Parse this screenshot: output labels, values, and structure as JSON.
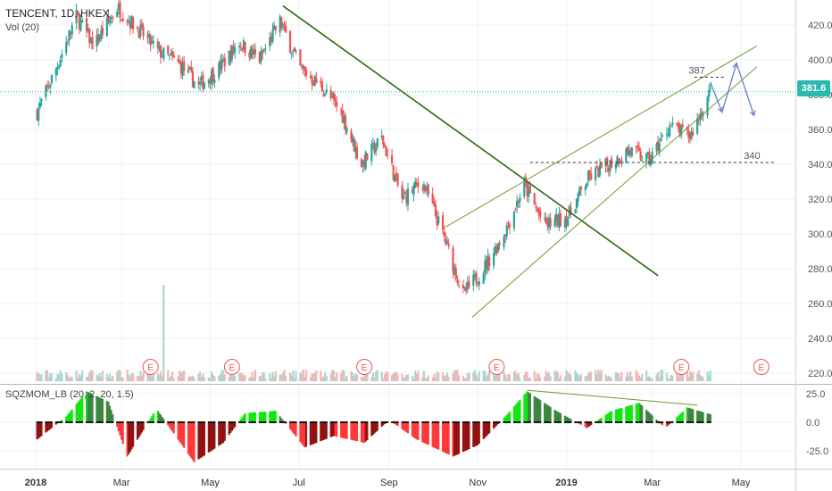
{
  "header": {
    "symbol_line": "TENCENT, 1D, HKEX",
    "volume_label": "Vol (20)",
    "indicator_label": "SQZMOM_LB (20, 2, 20, 1.5)"
  },
  "last_price_label": "381.6",
  "colors": {
    "up": "#26a69a",
    "down": "#ef5350",
    "mom_up_strong": "#00e600",
    "mom_up_weak": "#2e7d32",
    "mom_down_strong": "#ff2a2a",
    "mom_down_weak": "#8b0000",
    "downtrend_line": "#2e6b12",
    "channel_lines": "#6b9c2e",
    "projection": "#6b7fd0",
    "last_price_line": "#2bb8b0"
  },
  "annotations": {
    "resistance_label": "387",
    "support_label": "340",
    "earnings_marker": "E"
  },
  "chart_data": [
    {
      "type": "candlestick",
      "title": "TENCENT, 1D, HKEX",
      "y_axis_ticks": [
        "420.0",
        "400.0",
        "380.0",
        "360.0",
        "340.0",
        "320.0",
        "300.0",
        "280.0",
        "260.0",
        "240.0",
        "220.0"
      ],
      "x_axis_ticks": [
        "2018",
        "Mar",
        "May",
        "Jul",
        "Sep",
        "Nov",
        "2019",
        "Mar",
        "May"
      ],
      "ylim": [
        215,
        430
      ],
      "last_price": 381.6,
      "levels": [
        387,
        340
      ],
      "price_path": [
        {
          "date": "2018-01-02",
          "price": 370
        },
        {
          "date": "2018-01-15",
          "price": 395
        },
        {
          "date": "2018-01-29",
          "price": 425
        },
        {
          "date": "2018-02-10",
          "price": 408
        },
        {
          "date": "2018-02-26",
          "price": 430
        },
        {
          "date": "2018-03-12",
          "price": 418
        },
        {
          "date": "2018-03-26",
          "price": 405
        },
        {
          "date": "2018-04-09",
          "price": 398
        },
        {
          "date": "2018-04-23",
          "price": 385
        },
        {
          "date": "2018-05-07",
          "price": 395
        },
        {
          "date": "2018-05-21",
          "price": 410
        },
        {
          "date": "2018-06-04",
          "price": 400
        },
        {
          "date": "2018-06-18",
          "price": 422
        },
        {
          "date": "2018-07-02",
          "price": 395
        },
        {
          "date": "2018-07-16",
          "price": 385
        },
        {
          "date": "2018-07-30",
          "price": 370
        },
        {
          "date": "2018-08-13",
          "price": 340
        },
        {
          "date": "2018-08-27",
          "price": 355
        },
        {
          "date": "2018-09-10",
          "price": 320
        },
        {
          "date": "2018-09-24",
          "price": 330
        },
        {
          "date": "2018-10-08",
          "price": 300
        },
        {
          "date": "2018-10-22",
          "price": 265
        },
        {
          "date": "2018-11-05",
          "price": 280
        },
        {
          "date": "2018-11-19",
          "price": 300
        },
        {
          "date": "2018-12-03",
          "price": 328
        },
        {
          "date": "2018-12-17",
          "price": 305
        },
        {
          "date": "2019-01-02",
          "price": 310
        },
        {
          "date": "2019-01-16",
          "price": 332
        },
        {
          "date": "2019-01-30",
          "price": 340
        },
        {
          "date": "2019-02-13",
          "price": 348
        },
        {
          "date": "2019-02-27",
          "price": 342
        },
        {
          "date": "2019-03-13",
          "price": 362
        },
        {
          "date": "2019-03-27",
          "price": 356
        },
        {
          "date": "2019-04-10",
          "price": 381.6
        }
      ],
      "volume_spike": {
        "date": "2018-03-30",
        "relative": 1.0
      }
    },
    {
      "type": "bar",
      "title": "SQZMOM_LB (20, 2, 20, 1.5)",
      "y_axis_ticks": [
        "25.0",
        "0.0",
        "-25.0"
      ],
      "ylim": [
        -35,
        32
      ],
      "momentum_path": [
        {
          "date": "2018-01-02",
          "value": -15
        },
        {
          "date": "2018-01-22",
          "value": 5
        },
        {
          "date": "2018-02-05",
          "value": 27
        },
        {
          "date": "2018-02-20",
          "value": 18
        },
        {
          "date": "2018-03-05",
          "value": -30
        },
        {
          "date": "2018-03-25",
          "value": 12
        },
        {
          "date": "2018-04-05",
          "value": -8
        },
        {
          "date": "2018-04-20",
          "value": -35
        },
        {
          "date": "2018-05-10",
          "value": -18
        },
        {
          "date": "2018-05-25",
          "value": 8
        },
        {
          "date": "2018-06-15",
          "value": 10
        },
        {
          "date": "2018-07-05",
          "value": -22
        },
        {
          "date": "2018-07-25",
          "value": -12
        },
        {
          "date": "2018-08-15",
          "value": -18
        },
        {
          "date": "2018-09-01",
          "value": 2
        },
        {
          "date": "2018-09-20",
          "value": -15
        },
        {
          "date": "2018-10-15",
          "value": -30
        },
        {
          "date": "2018-11-01",
          "value": -20
        },
        {
          "date": "2018-11-20",
          "value": 5
        },
        {
          "date": "2018-12-05",
          "value": 27
        },
        {
          "date": "2018-12-25",
          "value": 10
        },
        {
          "date": "2019-01-15",
          "value": -5
        },
        {
          "date": "2019-02-01",
          "value": 10
        },
        {
          "date": "2019-02-20",
          "value": 17
        },
        {
          "date": "2019-03-10",
          "value": -5
        },
        {
          "date": "2019-03-25",
          "value": 13
        },
        {
          "date": "2019-04-10",
          "value": 7
        }
      ]
    }
  ]
}
